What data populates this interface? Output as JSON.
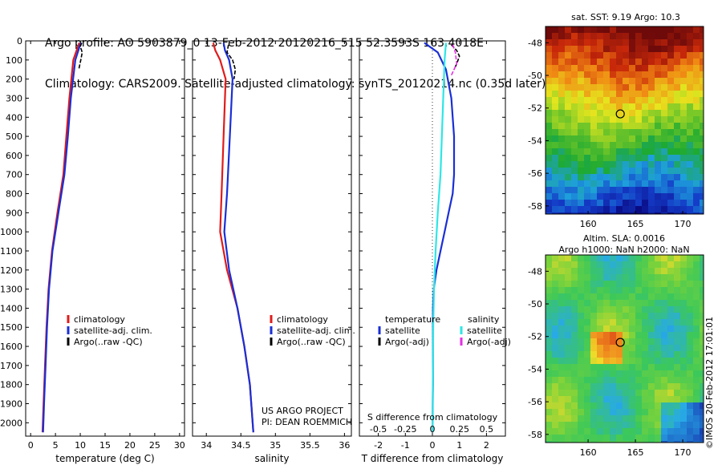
{
  "header": {
    "line1": "Argo profile: AO 5903879_0 13-Feb-2012 20120216_515 52.3593S 163.4018E",
    "line2": "Climatology: CARS2009. Satellite-adjusted climatology: synTS_20120214.nc (0.35d later)"
  },
  "colors": {
    "clim": "#e01b1b",
    "sat": "#1a2fd6",
    "argo": "#000000",
    "sat_s": "#2ee6e6",
    "argo_s": "#e62ee6",
    "dotted": "#333333"
  },
  "footer": {
    "project": "US ARGO PROJECT",
    "pi": "PI: DEAN ROEMMICH",
    "timestamp": "©IMOS 20-Feb-2012 17:01:01"
  },
  "maps": {
    "sst_title": "sat. SST: 9.19 Argo: 10.3",
    "sla_title1": "Altim. SLA: 0.0016",
    "sla_title2": "Argo h1000: NaN h2000: NaN",
    "lat_ticks": [
      -48,
      -50,
      -52,
      -54,
      -56,
      -58
    ],
    "lon_ticks": [
      160,
      165,
      170
    ],
    "lat_range": [
      -47,
      -58.5
    ],
    "lon_range": [
      155.5,
      172.2
    ],
    "argo_pos": {
      "lat": -52.36,
      "lon": 163.4
    }
  },
  "chart_data": [
    {
      "type": "line",
      "xlabel": "temperature (deg C)",
      "ylabel": "",
      "xlim": [
        -1,
        31
      ],
      "ylim": [
        2070,
        0
      ],
      "xticks": [
        0,
        5,
        10,
        15,
        20,
        25,
        30
      ],
      "yticks": [
        0,
        100,
        200,
        300,
        400,
        500,
        600,
        700,
        800,
        900,
        1000,
        1100,
        1200,
        1300,
        1400,
        1500,
        1600,
        1700,
        1800,
        1900,
        2000
      ],
      "legend": [
        "climatology",
        "satellite-adj. clim.",
        "Argo(..raw -QC)"
      ],
      "series": [
        {
          "name": "climatology",
          "depth": [
            10,
            100,
            300,
            500,
            700,
            900,
            1100,
            1300,
            1500,
            1700,
            1900,
            2050
          ],
          "values": [
            9.8,
            8.6,
            7.8,
            7.2,
            6.6,
            5.4,
            4.3,
            3.6,
            3.2,
            2.9,
            2.6,
            2.4
          ]
        },
        {
          "name": "satellite-adj. clim.",
          "depth": [
            10,
            100,
            300,
            500,
            700,
            900,
            1100,
            1300,
            1500,
            1700,
            1900,
            2050
          ],
          "values": [
            10.1,
            9.0,
            8.1,
            7.5,
            6.8,
            5.6,
            4.4,
            3.7,
            3.3,
            3.0,
            2.7,
            2.5
          ]
        },
        {
          "name": "Argo(..raw -QC)",
          "depth": [
            10,
            30,
            60,
            100,
            150
          ],
          "values": [
            10.3,
            10.0,
            10.4,
            10.1,
            9.7
          ]
        }
      ]
    },
    {
      "type": "line",
      "xlabel": "salinity",
      "ylabel": "",
      "xlim": [
        33.8,
        36.1
      ],
      "ylim": [
        2070,
        0
      ],
      "xticks": [
        34,
        34.5,
        35,
        35.5,
        36
      ],
      "legend": [
        "climatology",
        "satellite-adj. clim.",
        "Argo(..raw -QC)"
      ],
      "series": [
        {
          "name": "climatology",
          "depth": [
            10,
            50,
            100,
            200,
            500,
            800,
            1000,
            1200,
            1400,
            1600,
            1800,
            2050
          ],
          "values": [
            34.1,
            34.13,
            34.2,
            34.28,
            34.25,
            34.22,
            34.2,
            34.3,
            34.45,
            34.55,
            34.63,
            34.68
          ]
        },
        {
          "name": "satellite-adj. clim.",
          "depth": [
            10,
            50,
            100,
            200,
            500,
            800,
            1000,
            1200,
            1400,
            1600,
            1800,
            2050
          ],
          "values": [
            34.25,
            34.27,
            34.33,
            34.38,
            34.34,
            34.3,
            34.26,
            34.33,
            34.45,
            34.55,
            34.63,
            34.68
          ]
        },
        {
          "name": "Argo(..raw -QC)",
          "depth": [
            20,
            60,
            100,
            150,
            200
          ],
          "values": [
            34.32,
            34.3,
            34.38,
            34.42,
            34.4
          ]
        }
      ]
    },
    {
      "type": "line",
      "xlabel": "T difference from climatology",
      "xlabel_top": "S difference from climatology",
      "ylabel": "",
      "xlim": [
        -2.7,
        2.7
      ],
      "ylim": [
        2070,
        0
      ],
      "xticks": [
        -2,
        -1,
        0,
        1,
        2
      ],
      "top_xtick_labels": [
        "-0.5",
        "-0.25",
        "0",
        "0.25",
        "0.5"
      ],
      "legend_headers": [
        "temperature",
        "salinity"
      ],
      "legend": [
        "satellite",
        "Argo(-adj)",
        "satellite",
        "Argo(-adj)"
      ],
      "series": [
        {
          "name": "satellite",
          "depth": [
            10,
            60,
            150,
            300,
            500,
            700,
            800,
            900,
            1000,
            1100,
            1200,
            1300,
            1400,
            1600,
            1800,
            2050
          ],
          "values": [
            -0.3,
            0.2,
            0.5,
            0.7,
            0.8,
            0.8,
            0.75,
            0.6,
            0.45,
            0.3,
            0.15,
            0.05,
            0.02,
            0.02,
            0.02,
            0.0
          ]
        },
        {
          "name": "Argo(-adj)",
          "depth": [
            20,
            50,
            80,
            120,
            150
          ],
          "values": [
            0.7,
            0.9,
            1.0,
            0.9,
            0.8
          ]
        },
        {
          "name": "satellite",
          "depth": [
            10,
            100,
            300,
            500,
            700,
            900,
            1100,
            1300,
            1500,
            1700,
            1900,
            2050
          ],
          "values": [
            0.5,
            0.45,
            0.4,
            0.35,
            0.3,
            0.2,
            0.12,
            0.06,
            0.03,
            0.02,
            0.01,
            0.0
          ]
        },
        {
          "name": "Argo(-adj)",
          "depth": [
            20,
            60,
            120,
            180
          ],
          "values": [
            0.75,
            0.85,
            0.9,
            0.7
          ]
        }
      ]
    }
  ]
}
